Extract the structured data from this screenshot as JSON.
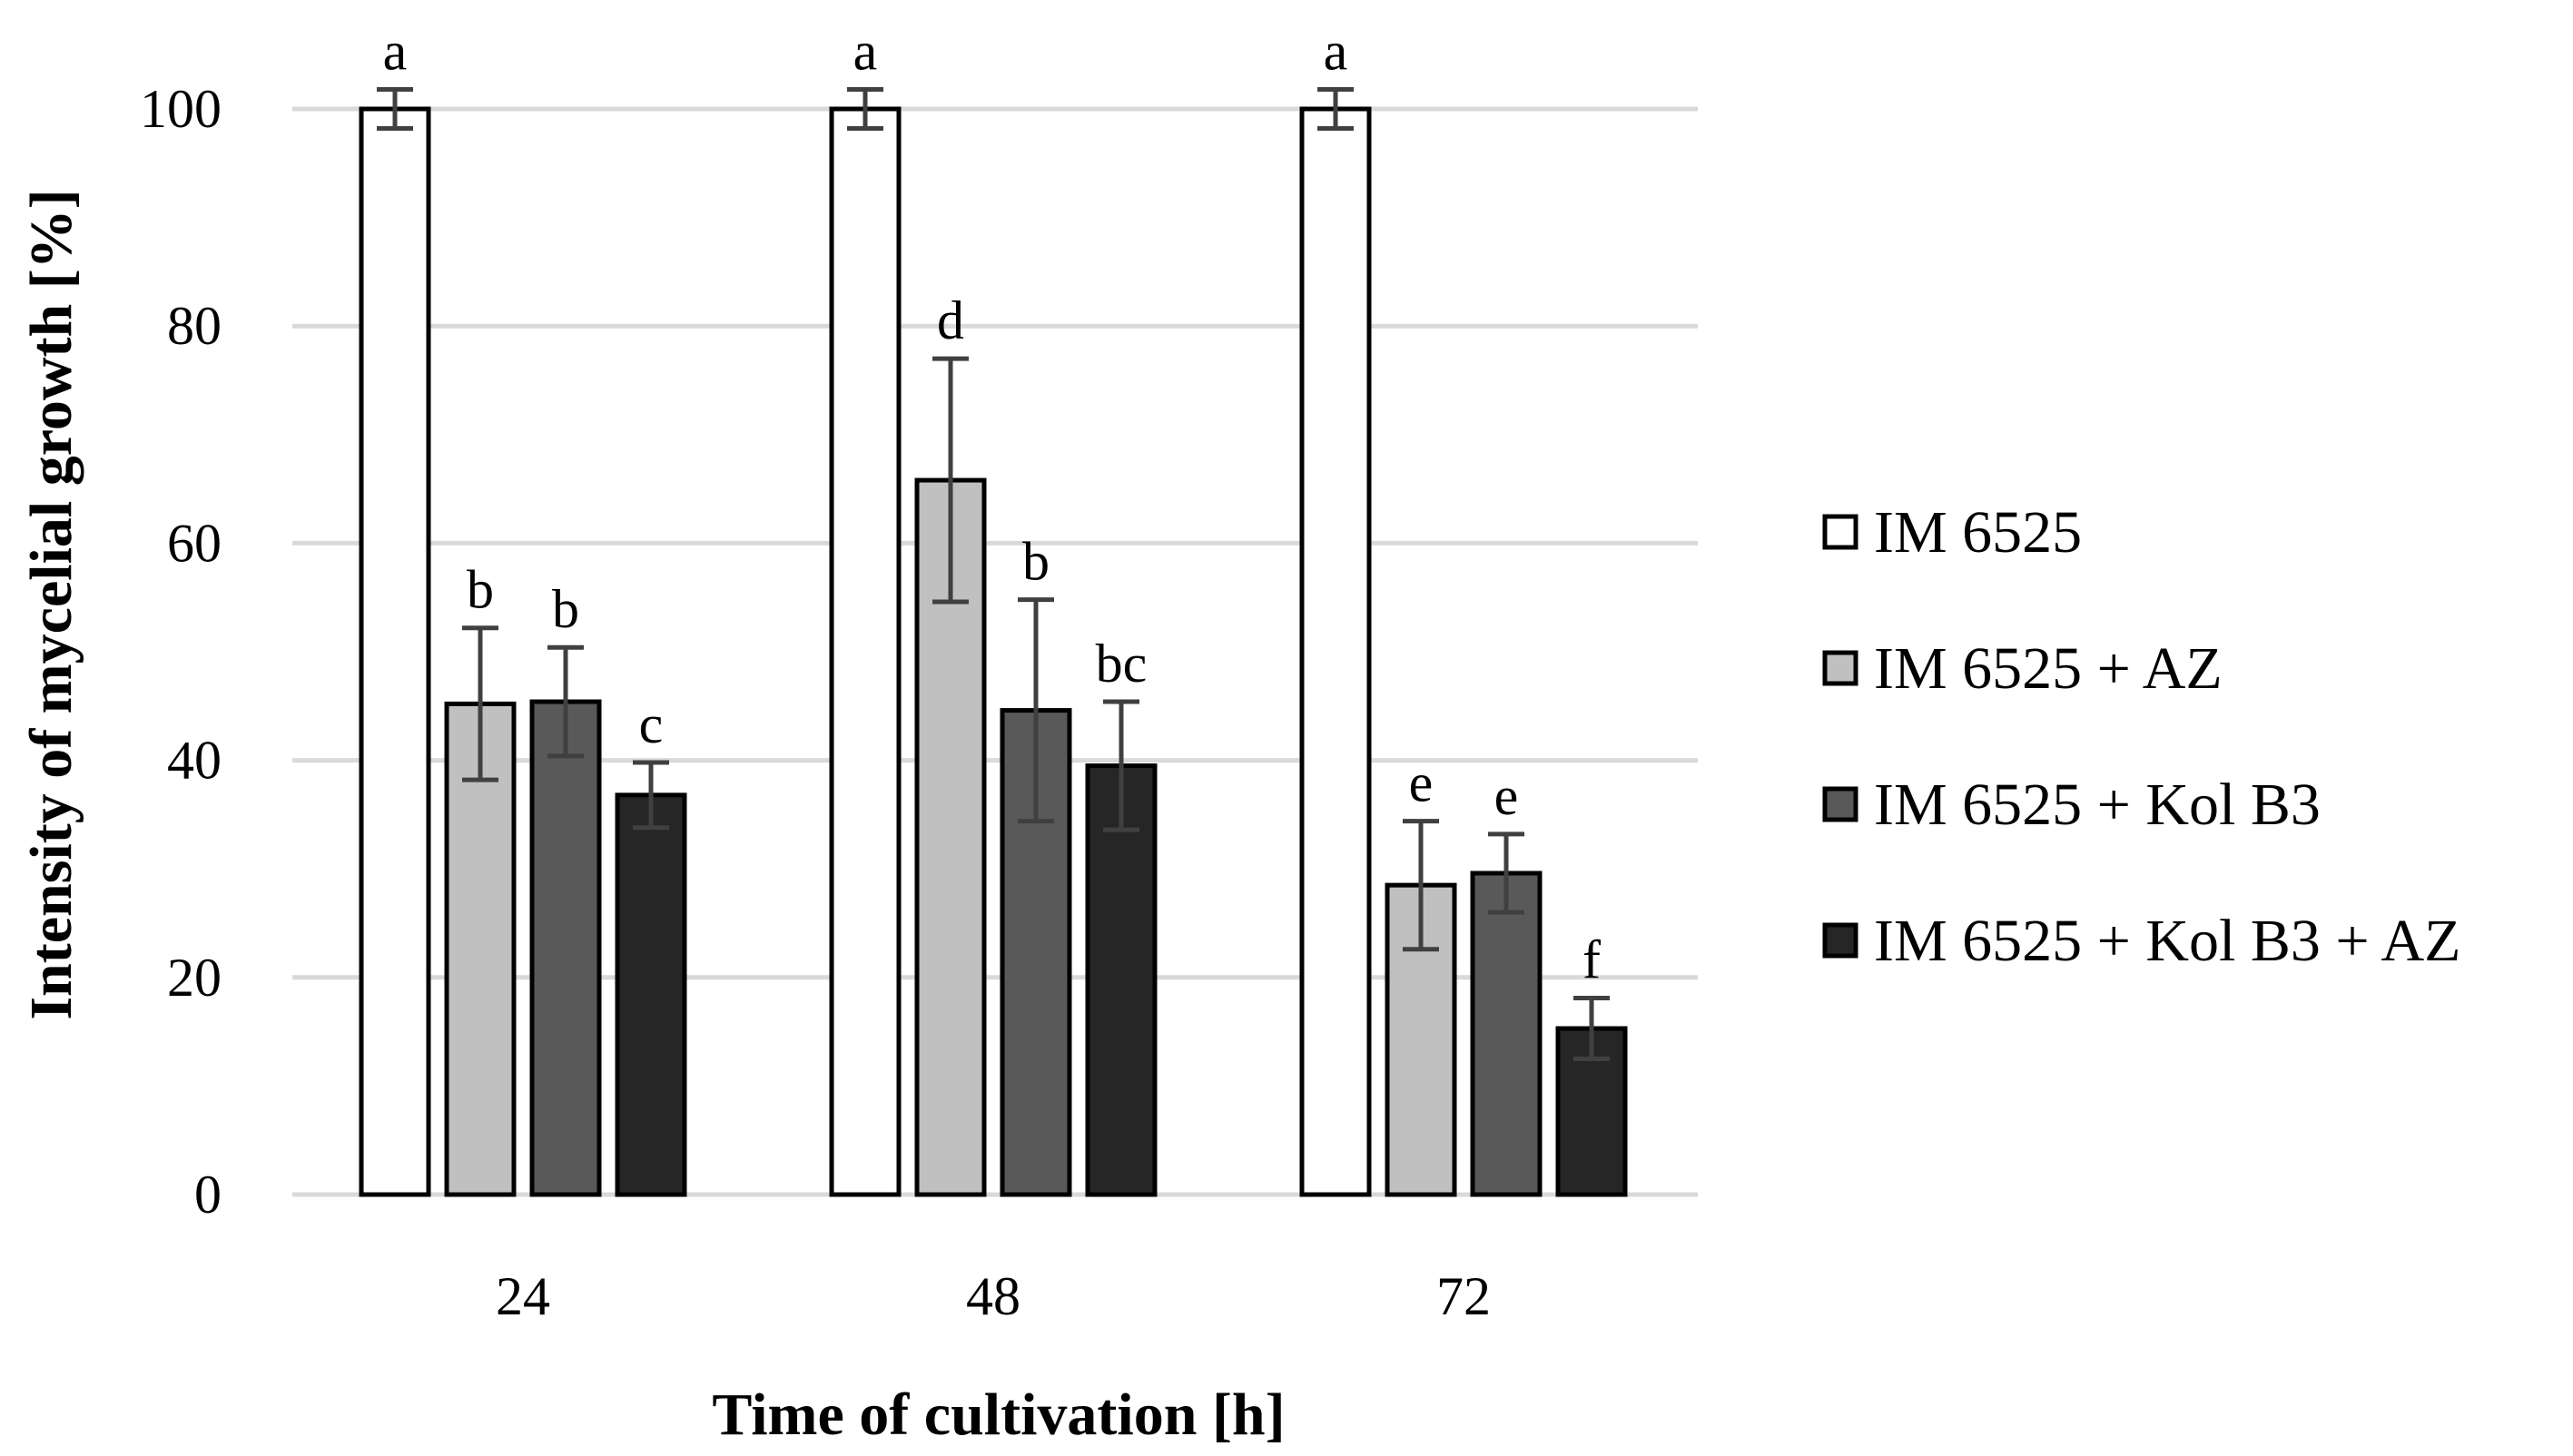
{
  "chart_data": {
    "type": "bar",
    "title": "",
    "xlabel": "Time of cultivation [h]",
    "ylabel": "Intensity of mycelial growth [%]",
    "ylim": [
      0,
      100
    ],
    "yticks": [
      "0",
      "20",
      "40",
      "60",
      "80",
      "100"
    ],
    "grid": true,
    "legend_position": "right",
    "categories": [
      "24",
      "48",
      "72"
    ],
    "series": [
      {
        "name": "IM 6525",
        "color": "#ffffff",
        "values": [
          100,
          100,
          100
        ],
        "errors": [
          1.8,
          1.8,
          1.8
        ],
        "letters": [
          "a",
          "a",
          "a"
        ]
      },
      {
        "name": "IM 6525 + AZ",
        "color": "#c0c0c0",
        "values": [
          45.2,
          65.8,
          28.5
        ],
        "errors": [
          7.0,
          11.2,
          5.9
        ],
        "letters": [
          "b",
          "d",
          "e"
        ]
      },
      {
        "name": "IM 6525 + Kol B3",
        "color": "#595959",
        "values": [
          45.4,
          44.6,
          29.6
        ],
        "errors": [
          5.0,
          10.2,
          3.6
        ],
        "letters": [
          "b",
          "b",
          "e"
        ]
      },
      {
        "name": "IM 6525 + Kol B3 + AZ",
        "color": "#262626",
        "values": [
          36.8,
          39.5,
          15.3
        ],
        "errors": [
          3.0,
          5.9,
          2.8
        ],
        "letters": [
          "c",
          "bc",
          "f"
        ]
      }
    ]
  }
}
